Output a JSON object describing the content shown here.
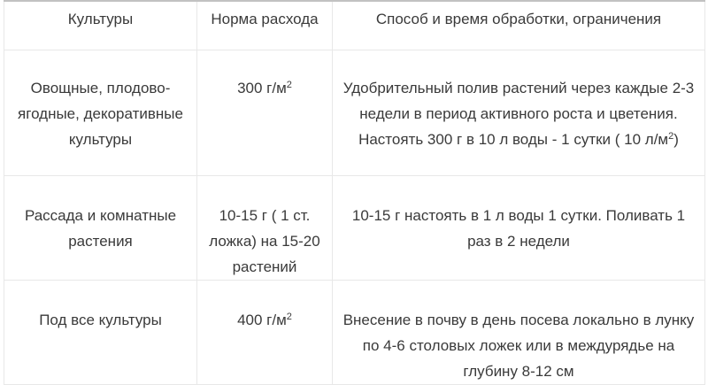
{
  "table": {
    "columns": [
      "Культуры",
      "Норма расхода",
      "Способ и время обработки, ограничения"
    ],
    "rows": [
      {
        "culture": "Овощные, плодово-ягодные, декоративные культуры",
        "rate_pre": "300 г/м",
        "rate_sup": "2",
        "method_pre": "Удобрительный полив растений через каждые 2-3 недели в период активного роста и цветения. Настоять 300 г в 10 л воды - 1 сутки ( 10 л/м",
        "method_sup": "2",
        "method_post": ")"
      },
      {
        "culture": "Рассада и комнатные растения",
        "rate_pre": "10-15 г ( 1 ст. ложка) на 15-20 растений",
        "rate_sup": "",
        "method_pre": "10-15 г настоять в 1 л воды 1 сутки. Поливать 1 раз в 2 недели",
        "method_sup": "",
        "method_post": ""
      },
      {
        "culture": "Под все культуры",
        "rate_pre": "400 г/м",
        "rate_sup": "2",
        "method_pre": "Внесение в почву в день посева локально в лунку по 4-6 столовых ложек или в междурядье на глубину 8-12 см",
        "method_sup": "",
        "method_post": ""
      }
    ]
  }
}
